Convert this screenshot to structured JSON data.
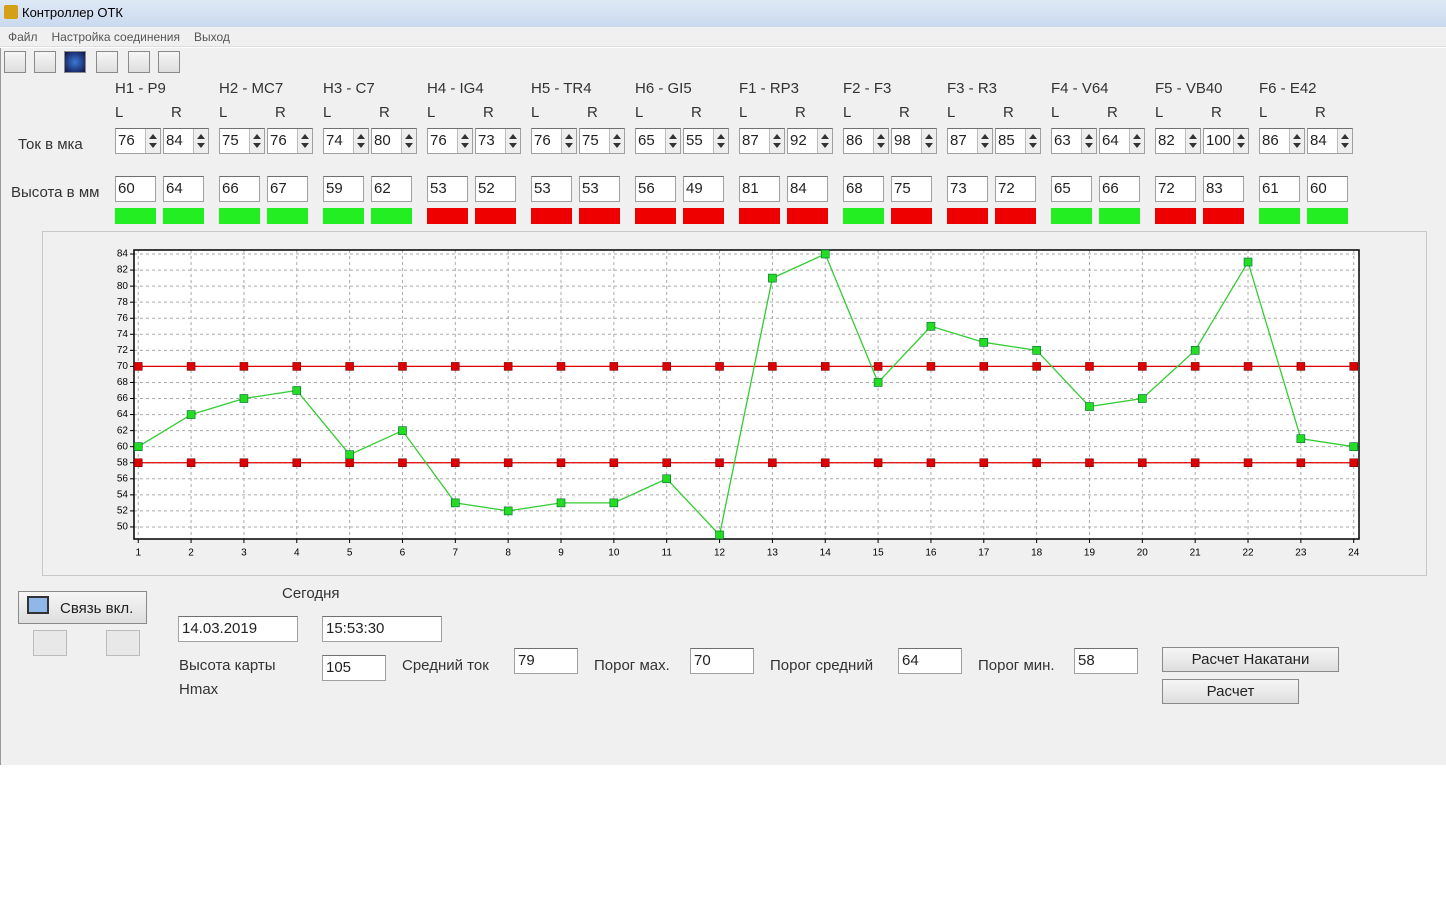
{
  "window": {
    "title": "Контроллер ОТК",
    "menu": [
      "Файл",
      "Настройка соединения",
      "Выход"
    ]
  },
  "row_labels": {
    "current": "Ток в мка",
    "height": "Высота в мм"
  },
  "side_labels": [
    "L",
    "R"
  ],
  "groups": [
    {
      "name": "H1 - P9",
      "current": [
        76,
        84
      ],
      "height": [
        60,
        64
      ],
      "status_colors": [
        "#22ee22",
        "#22ee22"
      ]
    },
    {
      "name": "H2 - MC7",
      "current": [
        75,
        76
      ],
      "height": [
        66,
        67
      ],
      "status_colors": [
        "#22ee22",
        "#22ee22"
      ]
    },
    {
      "name": "H3 - C7",
      "current": [
        74,
        80
      ],
      "height": [
        59,
        62
      ],
      "status_colors": [
        "#22ee22",
        "#22ee22"
      ]
    },
    {
      "name": "H4 - IG4",
      "current": [
        76,
        73
      ],
      "height": [
        53,
        52
      ],
      "status_colors": [
        "#ee0000",
        "#ee0000"
      ]
    },
    {
      "name": "H5 - TR4",
      "current": [
        76,
        75
      ],
      "height": [
        53,
        53
      ],
      "status_colors": [
        "#ee0000",
        "#ee0000"
      ]
    },
    {
      "name": "H6 - GI5",
      "current": [
        65,
        55
      ],
      "height": [
        56,
        49
      ],
      "status_colors": [
        "#ee0000",
        "#ee0000"
      ]
    },
    {
      "name": "F1 - RP3",
      "current": [
        87,
        92
      ],
      "height": [
        81,
        84
      ],
      "status_colors": [
        "#ee0000",
        "#ee0000"
      ]
    },
    {
      "name": "F2 - F3",
      "current": [
        86,
        98
      ],
      "height": [
        68,
        75
      ],
      "status_colors": [
        "#22ee22",
        "#ee0000"
      ]
    },
    {
      "name": "F3 - R3",
      "current": [
        87,
        85
      ],
      "height": [
        73,
        72
      ],
      "status_colors": [
        "#ee0000",
        "#ee0000"
      ]
    },
    {
      "name": "F4 - V64",
      "current": [
        63,
        64
      ],
      "height": [
        65,
        66
      ],
      "status_colors": [
        "#22ee22",
        "#22ee22"
      ]
    },
    {
      "name": "F5 - VB40",
      "current": [
        82,
        100
      ],
      "height": [
        72,
        83
      ],
      "status_colors": [
        "#ee0000",
        "#ee0000"
      ]
    },
    {
      "name": "F6 - E42",
      "current": [
        86,
        84
      ],
      "height": [
        61,
        60
      ],
      "status_colors": [
        "#22ee22",
        "#22ee22"
      ]
    }
  ],
  "chart_data": {
    "type": "line",
    "x": [
      1,
      2,
      3,
      4,
      5,
      6,
      7,
      8,
      9,
      10,
      11,
      12,
      13,
      14,
      15,
      16,
      17,
      18,
      19,
      20,
      21,
      22,
      23,
      24
    ],
    "xlim": [
      0.92,
      24.1
    ],
    "xticks": [
      1,
      2,
      3,
      4,
      5,
      6,
      7,
      8,
      9,
      10,
      11,
      12,
      13,
      14,
      15,
      16,
      17,
      18,
      19,
      20,
      21,
      22,
      23,
      24
    ],
    "ylim": [
      48.5,
      84.5
    ],
    "yticks": [
      50,
      52,
      54,
      56,
      58,
      60,
      62,
      64,
      66,
      68,
      70,
      72,
      74,
      76,
      78,
      80,
      82,
      84
    ],
    "grid": true,
    "series": [
      {
        "color": "#33cc33",
        "marker_color": "#22dd22",
        "values": [
          60,
          64,
          66,
          67,
          59,
          62,
          53,
          52,
          53,
          53,
          56,
          49,
          81,
          84,
          68,
          75,
          73,
          72,
          65,
          66,
          72,
          83,
          61,
          60
        ]
      }
    ],
    "threshold_color": "#dd0000"
  },
  "controls": {
    "connect_button": "Связь вкл.",
    "today_label": "Сегодня",
    "date": "14.03.2019",
    "time": "15:53:30",
    "card_height_label": "Высота карты",
    "hmax_label": "Hmax",
    "card_height": 105,
    "avg_current_label": "Средний ток",
    "avg_current": 79,
    "max_threshold_label": "Порог мах.",
    "max_threshold": 70,
    "mid_threshold_label": "Порог средний",
    "mid_threshold": 64,
    "min_threshold_label": "Порог мин.",
    "min_threshold": 58,
    "calc_nakatani_button": "Расчет Накатани",
    "calc_button": "Расчет"
  }
}
